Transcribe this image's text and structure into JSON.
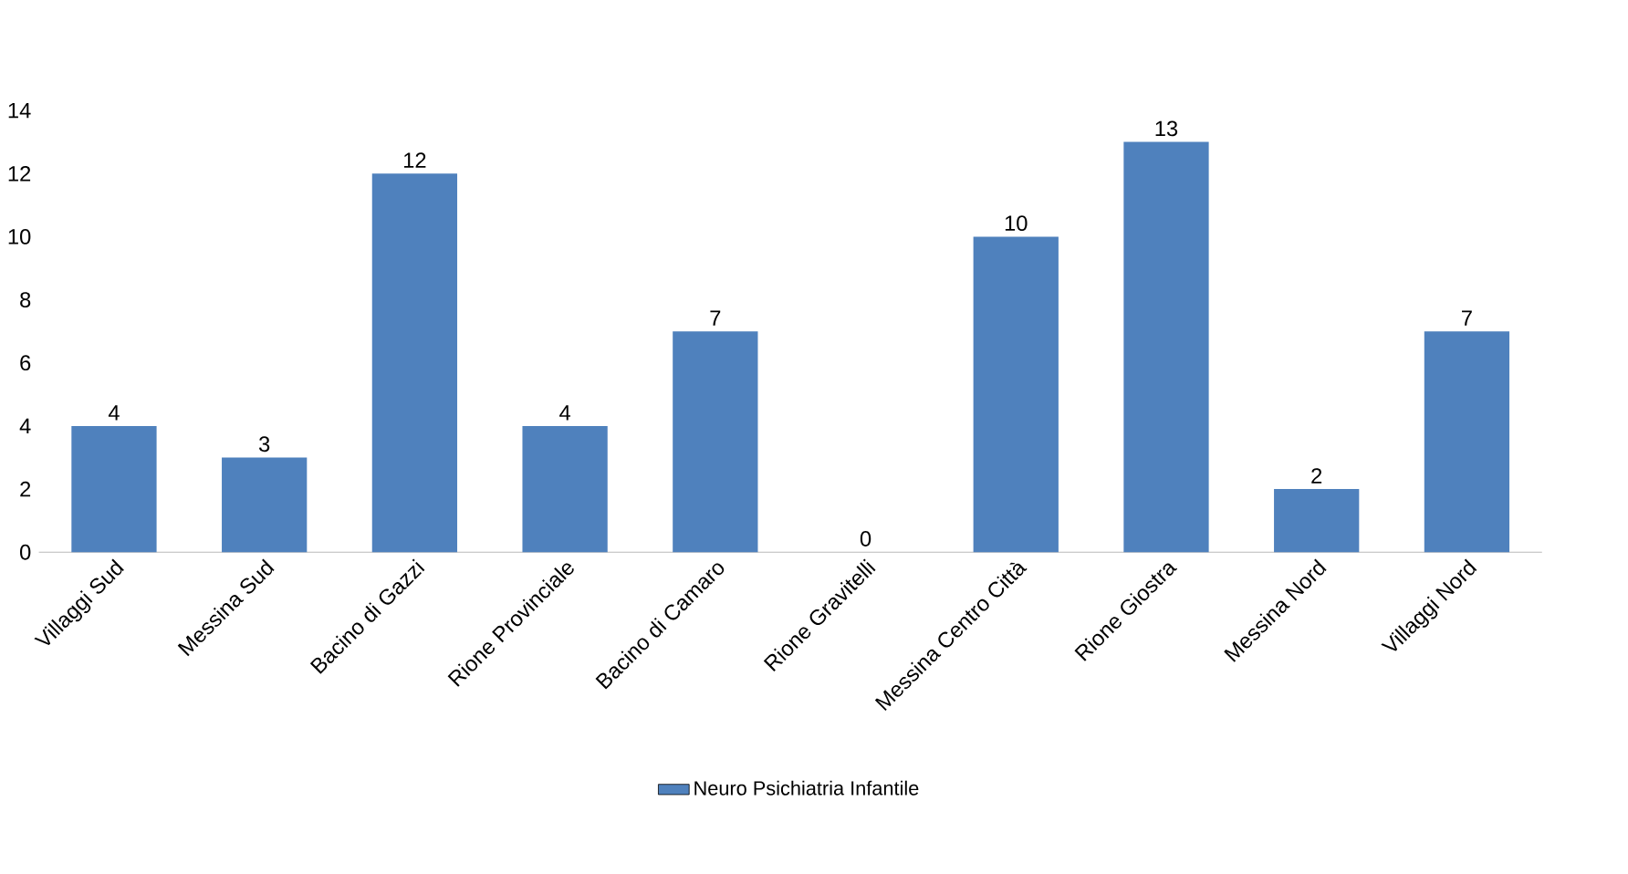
{
  "chart_data": {
    "type": "bar",
    "categories": [
      "Villaggi Sud",
      "Messina Sud",
      "Bacino di Gazzi",
      "Rione Provinciale",
      "Bacino di Camaro",
      "Rione Gravitelli",
      "Messina Centro Città",
      "Rione Giostra",
      "Messina Nord",
      "Villaggi Nord"
    ],
    "series": [
      {
        "name": "Neuro Psichiatria Infantile",
        "color": "#4f81bd",
        "values": [
          4,
          3,
          12,
          4,
          7,
          0,
          10,
          13,
          2,
          7
        ]
      }
    ],
    "ylim": [
      0,
      14
    ],
    "yticks": [
      0,
      2,
      4,
      6,
      8,
      10,
      12,
      14
    ],
    "data_labels": true,
    "legend": "bottom"
  }
}
